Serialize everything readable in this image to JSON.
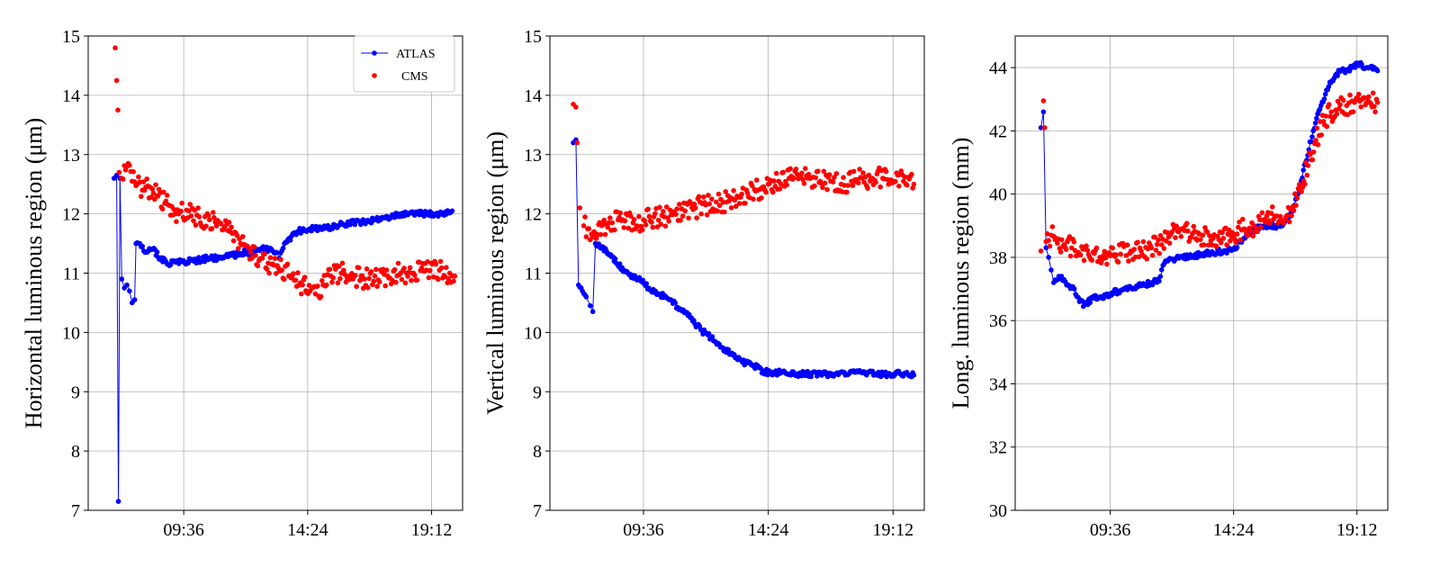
{
  "figure": {
    "x_tick_labels": [
      "09:36",
      "14:24",
      "19:12"
    ],
    "colors": {
      "atlas": "#0000ff",
      "cms": "#ff0000",
      "grid": "#b0b0b0"
    }
  },
  "chart_data": [
    {
      "type": "line+scatter",
      "ylabel": "Horizontal luminous region (μm)",
      "ylim": [
        7,
        15
      ],
      "yticks": [
        7,
        8,
        9,
        10,
        11,
        12,
        13,
        14,
        15
      ],
      "xlabel": "",
      "x_unit": "hours of day",
      "xlim": [
        5.9,
        20.4
      ],
      "xticks": [
        "09:36",
        "14:24",
        "19:12"
      ],
      "grid": true,
      "legend": {
        "position": "top-right",
        "entries": [
          "ATLAS",
          "CMS"
        ]
      },
      "series": [
        {
          "name": "ATLAS",
          "style": "line-with-dots",
          "color": "#0000ff",
          "points": [
            [
              6.9,
              12.6
            ],
            [
              7.0,
              12.65
            ],
            [
              7.07,
              7.15
            ],
            [
              7.13,
              12.6
            ],
            [
              7.2,
              10.9
            ],
            [
              7.3,
              10.75
            ],
            [
              7.4,
              10.8
            ],
            [
              7.5,
              10.7
            ],
            [
              7.6,
              10.5
            ],
            [
              7.7,
              10.55
            ],
            [
              7.75,
              11.5
            ],
            [
              7.9,
              11.5
            ],
            [
              8.1,
              11.35
            ],
            [
              8.4,
              11.4
            ],
            [
              8.7,
              11.25
            ],
            [
              9.0,
              11.15
            ],
            [
              9.5,
              11.2
            ],
            [
              10.0,
              11.2
            ],
            [
              10.5,
              11.25
            ],
            [
              11.0,
              11.25
            ],
            [
              11.5,
              11.3
            ],
            [
              12.0,
              11.35
            ],
            [
              12.5,
              11.4
            ],
            [
              13.0,
              11.4
            ],
            [
              13.2,
              11.35
            ],
            [
              13.3,
              11.25
            ],
            [
              13.5,
              11.5
            ],
            [
              14.0,
              11.7
            ],
            [
              14.5,
              11.75
            ],
            [
              15.0,
              11.75
            ],
            [
              15.5,
              11.8
            ],
            [
              16.0,
              11.85
            ],
            [
              16.5,
              11.85
            ],
            [
              17.0,
              11.9
            ],
            [
              17.5,
              11.95
            ],
            [
              18.0,
              12.0
            ],
            [
              18.5,
              12.0
            ],
            [
              19.0,
              12.0
            ],
            [
              19.5,
              12.0
            ],
            [
              20.0,
              12.05
            ]
          ]
        },
        {
          "name": "CMS",
          "style": "dots",
          "color": "#ff0000",
          "points": [
            [
              6.95,
              14.8
            ],
            [
              7.0,
              14.25
            ],
            [
              7.05,
              13.75
            ],
            [
              7.1,
              12.7
            ],
            [
              7.2,
              12.6
            ],
            [
              7.4,
              12.8
            ],
            [
              7.6,
              12.55
            ],
            [
              7.8,
              12.5
            ],
            [
              8.0,
              12.4
            ],
            [
              8.3,
              12.45
            ],
            [
              8.6,
              12.3
            ],
            [
              9.0,
              12.15
            ],
            [
              9.4,
              12.0
            ],
            [
              9.8,
              12.05
            ],
            [
              10.2,
              11.95
            ],
            [
              10.6,
              11.9
            ],
            [
              11.0,
              11.85
            ],
            [
              11.4,
              11.7
            ],
            [
              11.8,
              11.5
            ],
            [
              12.2,
              11.35
            ],
            [
              12.6,
              11.25
            ],
            [
              13.0,
              11.15
            ],
            [
              13.4,
              11.05
            ],
            [
              13.8,
              10.95
            ],
            [
              14.2,
              10.8
            ],
            [
              14.5,
              10.7
            ],
            [
              14.7,
              10.65
            ],
            [
              15.0,
              10.8
            ],
            [
              15.3,
              10.95
            ],
            [
              15.7,
              11.0
            ],
            [
              16.2,
              10.95
            ],
            [
              16.6,
              10.9
            ],
            [
              17.0,
              10.95
            ],
            [
              17.5,
              10.95
            ],
            [
              18.0,
              11.0
            ],
            [
              18.5,
              11.0
            ],
            [
              19.0,
              11.05
            ],
            [
              19.5,
              11.05
            ],
            [
              19.9,
              11.0
            ],
            [
              20.1,
              10.95
            ]
          ]
        }
      ]
    },
    {
      "type": "line+scatter",
      "ylabel": "Vertical luminous region (μm)",
      "ylim": [
        7,
        15
      ],
      "yticks": [
        7,
        8,
        9,
        10,
        11,
        12,
        13,
        14,
        15
      ],
      "xlabel": "",
      "x_unit": "hours of day",
      "xlim": [
        6.0,
        20.4
      ],
      "xticks": [
        "09:36",
        "14:24",
        "19:12"
      ],
      "grid": true,
      "series": [
        {
          "name": "ATLAS",
          "style": "line-with-dots",
          "color": "#0000ff",
          "points": [
            [
              6.9,
              13.2
            ],
            [
              7.0,
              13.25
            ],
            [
              7.1,
              10.8
            ],
            [
              7.25,
              10.7
            ],
            [
              7.4,
              10.6
            ],
            [
              7.55,
              10.45
            ],
            [
              7.65,
              10.35
            ],
            [
              7.75,
              11.5
            ],
            [
              8.0,
              11.45
            ],
            [
              8.3,
              11.3
            ],
            [
              8.6,
              11.15
            ],
            [
              9.0,
              11.0
            ],
            [
              9.4,
              10.9
            ],
            [
              9.8,
              10.75
            ],
            [
              10.2,
              10.65
            ],
            [
              10.6,
              10.55
            ],
            [
              11.0,
              10.4
            ],
            [
              11.4,
              10.25
            ],
            [
              11.8,
              10.05
            ],
            [
              12.2,
              9.9
            ],
            [
              12.6,
              9.75
            ],
            [
              13.0,
              9.65
            ],
            [
              13.4,
              9.5
            ],
            [
              13.8,
              9.45
            ],
            [
              14.2,
              9.35
            ],
            [
              14.6,
              9.3
            ],
            [
              15.0,
              9.35
            ],
            [
              15.5,
              9.3
            ],
            [
              16.0,
              9.3
            ],
            [
              16.5,
              9.3
            ],
            [
              17.0,
              9.3
            ],
            [
              17.5,
              9.3
            ],
            [
              18.0,
              9.32
            ],
            [
              18.5,
              9.3
            ],
            [
              19.0,
              9.3
            ],
            [
              19.5,
              9.3
            ],
            [
              20.0,
              9.28
            ]
          ]
        },
        {
          "name": "CMS",
          "style": "dots",
          "color": "#ff0000",
          "points": [
            [
              6.9,
              13.85
            ],
            [
              7.0,
              13.8
            ],
            [
              7.05,
              13.2
            ],
            [
              7.15,
              12.1
            ],
            [
              7.3,
              11.8
            ],
            [
              7.5,
              11.75
            ],
            [
              7.7,
              11.7
            ],
            [
              8.0,
              11.8
            ],
            [
              8.4,
              11.85
            ],
            [
              8.8,
              11.9
            ],
            [
              9.2,
              11.85
            ],
            [
              9.6,
              11.9
            ],
            [
              10.0,
              11.95
            ],
            [
              10.4,
              11.95
            ],
            [
              10.8,
              12.0
            ],
            [
              11.2,
              12.05
            ],
            [
              11.6,
              12.1
            ],
            [
              12.0,
              12.15
            ],
            [
              12.4,
              12.2
            ],
            [
              12.8,
              12.2
            ],
            [
              13.2,
              12.3
            ],
            [
              13.6,
              12.35
            ],
            [
              14.0,
              12.4
            ],
            [
              14.4,
              12.5
            ],
            [
              14.8,
              12.55
            ],
            [
              15.2,
              12.6
            ],
            [
              15.6,
              12.65
            ],
            [
              16.0,
              12.6
            ],
            [
              16.4,
              12.55
            ],
            [
              16.8,
              12.55
            ],
            [
              17.2,
              12.5
            ],
            [
              17.6,
              12.55
            ],
            [
              18.0,
              12.6
            ],
            [
              18.4,
              12.6
            ],
            [
              18.8,
              12.6
            ],
            [
              19.2,
              12.55
            ],
            [
              19.6,
              12.55
            ],
            [
              20.0,
              12.5
            ]
          ]
        }
      ]
    },
    {
      "type": "line+scatter",
      "ylabel": "Long. luminous region (mm)",
      "ylim": [
        30,
        45
      ],
      "yticks": [
        30,
        32,
        34,
        36,
        38,
        40,
        42,
        44
      ],
      "xlabel": "",
      "x_unit": "hours of day",
      "xlim": [
        5.9,
        20.4
      ],
      "xticks": [
        "09:36",
        "14:24",
        "19:12"
      ],
      "grid": true,
      "series": [
        {
          "name": "ATLAS",
          "style": "line-with-dots",
          "color": "#0000ff",
          "points": [
            [
              6.9,
              42.1
            ],
            [
              7.0,
              42.6
            ],
            [
              7.1,
              38.3
            ],
            [
              7.2,
              38.0
            ],
            [
              7.3,
              37.6
            ],
            [
              7.4,
              37.2
            ],
            [
              7.6,
              37.4
            ],
            [
              7.8,
              37.3
            ],
            [
              8.0,
              37.1
            ],
            [
              8.2,
              37.0
            ],
            [
              8.4,
              36.6
            ],
            [
              8.6,
              36.5
            ],
            [
              8.9,
              36.7
            ],
            [
              9.2,
              36.75
            ],
            [
              9.6,
              36.85
            ],
            [
              10.0,
              36.95
            ],
            [
              10.4,
              37.05
            ],
            [
              10.8,
              37.1
            ],
            [
              11.2,
              37.2
            ],
            [
              11.5,
              37.25
            ],
            [
              11.7,
              37.8
            ],
            [
              12.0,
              37.95
            ],
            [
              12.4,
              38.0
            ],
            [
              12.8,
              38.05
            ],
            [
              13.2,
              38.1
            ],
            [
              13.6,
              38.15
            ],
            [
              14.0,
              38.2
            ],
            [
              14.4,
              38.25
            ],
            [
              14.8,
              38.6
            ],
            [
              15.2,
              38.9
            ],
            [
              15.6,
              39.0
            ],
            [
              16.0,
              39.0
            ],
            [
              16.3,
              39.0
            ],
            [
              16.6,
              39.3
            ],
            [
              16.9,
              40.0
            ],
            [
              17.2,
              41.0
            ],
            [
              17.5,
              42.0
            ],
            [
              17.8,
              42.8
            ],
            [
              18.1,
              43.4
            ],
            [
              18.4,
              43.8
            ],
            [
              18.7,
              43.9
            ],
            [
              19.0,
              44.0
            ],
            [
              19.3,
              44.1
            ],
            [
              19.6,
              44.0
            ],
            [
              20.0,
              43.9
            ]
          ]
        },
        {
          "name": "CMS",
          "style": "dots",
          "color": "#ff0000",
          "points": [
            [
              6.9,
              38.2
            ],
            [
              7.0,
              42.95
            ],
            [
              7.05,
              42.1
            ],
            [
              7.1,
              38.5
            ],
            [
              7.3,
              38.7
            ],
            [
              7.5,
              38.6
            ],
            [
              7.8,
              38.4
            ],
            [
              8.1,
              38.3
            ],
            [
              8.4,
              38.1
            ],
            [
              8.8,
              38.0
            ],
            [
              9.2,
              38.0
            ],
            [
              9.6,
              38.05
            ],
            [
              10.0,
              38.1
            ],
            [
              10.4,
              38.2
            ],
            [
              10.8,
              38.2
            ],
            [
              11.2,
              38.3
            ],
            [
              11.6,
              38.4
            ],
            [
              12.0,
              38.8
            ],
            [
              12.4,
              38.9
            ],
            [
              12.8,
              38.75
            ],
            [
              13.2,
              38.7
            ],
            [
              13.6,
              38.6
            ],
            [
              14.0,
              38.6
            ],
            [
              14.4,
              38.7
            ],
            [
              14.8,
              38.9
            ],
            [
              15.2,
              39.0
            ],
            [
              15.6,
              39.2
            ],
            [
              16.0,
              39.3
            ],
            [
              16.4,
              39.2
            ],
            [
              16.7,
              39.6
            ],
            [
              17.0,
              40.1
            ],
            [
              17.3,
              40.9
            ],
            [
              17.6,
              41.7
            ],
            [
              17.9,
              42.3
            ],
            [
              18.2,
              42.6
            ],
            [
              18.5,
              42.7
            ],
            [
              18.8,
              42.8
            ],
            [
              19.1,
              42.9
            ],
            [
              19.4,
              43.0
            ],
            [
              19.7,
              42.9
            ],
            [
              20.0,
              42.9
            ]
          ]
        }
      ]
    }
  ]
}
